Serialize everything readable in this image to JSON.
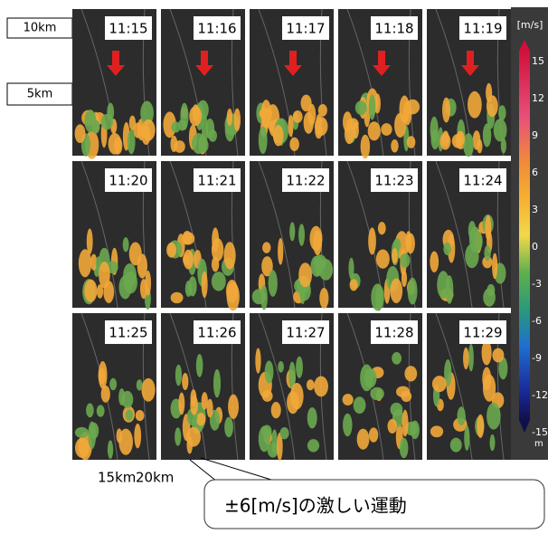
{
  "height_labels": [
    "10km",
    "5km"
  ],
  "panels": [
    "11:15",
    "11:16",
    "11:17",
    "11:18",
    "11:19",
    "11:20",
    "11:21",
    "11:22",
    "11:23",
    "11:24",
    "11:25",
    "11:26",
    "11:27",
    "11:28",
    "11:29"
  ],
  "distance_labels": [
    "15km",
    "20km"
  ],
  "colorbar": {
    "unit": "[m/s]",
    "labels": [
      "15",
      "12",
      "9",
      "6",
      "3",
      "0",
      "-3",
      "-6",
      "-9",
      "-12",
      "-15"
    ],
    "bottom_label": "m"
  },
  "callout": "±6[m/s]の激しい運動"
}
